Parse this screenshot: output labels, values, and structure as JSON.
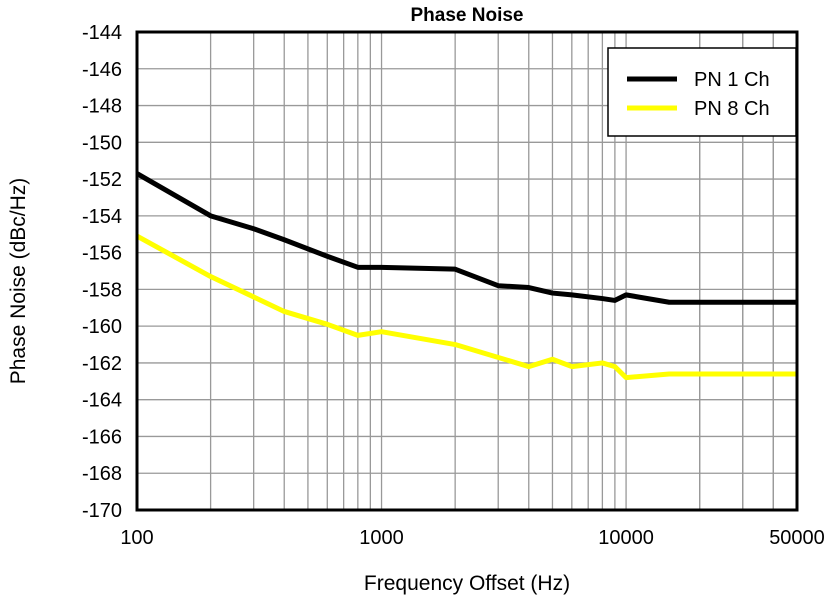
{
  "chart_data": {
    "type": "line",
    "title": "Phase Noise",
    "xlabel": "Frequency Offset (Hz)",
    "ylabel": "Phase Noise (dBc/Hz)",
    "xscale": "log",
    "xlim": [
      100,
      50000
    ],
    "ylim": [
      -170,
      -144
    ],
    "xticks": [
      100,
      1000,
      10000,
      50000
    ],
    "xtick_labels": [
      "100",
      "1000",
      "10000",
      "50000"
    ],
    "yticks": [
      -144,
      -146,
      -148,
      -150,
      -152,
      -154,
      -156,
      -158,
      -160,
      -162,
      -164,
      -166,
      -168,
      -170
    ],
    "ytick_labels": [
      "-144",
      "-146",
      "-148",
      "-150",
      "-152",
      "-154",
      "-156",
      "-158",
      "-160",
      "-162",
      "-164",
      "-166",
      "-168",
      "-170"
    ],
    "grid": true,
    "legend_position": "top-right",
    "series": [
      {
        "name": "PN 1 Ch",
        "color": "#000000",
        "x": [
          100,
          200,
          300,
          400,
          600,
          800,
          1000,
          2000,
          3000,
          4000,
          5000,
          6000,
          8000,
          9000,
          10000,
          15000,
          50000
        ],
        "y": [
          -151.7,
          -154.0,
          -154.7,
          -155.3,
          -156.2,
          -156.8,
          -156.8,
          -156.9,
          -157.8,
          -157.9,
          -158.2,
          -158.3,
          -158.5,
          -158.6,
          -158.3,
          -158.7,
          -158.7
        ]
      },
      {
        "name": "PN 8 Ch",
        "color": "#ffff00",
        "x": [
          100,
          200,
          400,
          600,
          800,
          1000,
          2000,
          4000,
          5000,
          6000,
          8000,
          9000,
          10000,
          15000,
          50000
        ],
        "y": [
          -155.1,
          -157.3,
          -159.2,
          -159.9,
          -160.5,
          -160.3,
          -161.0,
          -162.2,
          -161.8,
          -162.2,
          -162.0,
          -162.2,
          -162.8,
          -162.6,
          -162.6
        ]
      }
    ]
  }
}
